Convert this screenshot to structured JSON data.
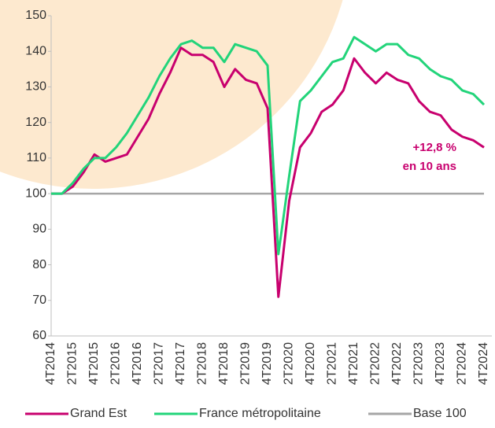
{
  "chart_data": {
    "type": "line",
    "categories": [
      "4T2014",
      null,
      "2T2015",
      null,
      "4T2015",
      null,
      "2T2016",
      null,
      "4T2016",
      null,
      "2T2017",
      null,
      "4T2017",
      null,
      "2T2018",
      null,
      "4T2018",
      null,
      "2T2019",
      null,
      "4T2019",
      null,
      "2T2020",
      null,
      "4T2020",
      null,
      "2T2021",
      null,
      "4T2021",
      null,
      "2T2022",
      null,
      "4T2022",
      null,
      "2T2023",
      null,
      "4T2023",
      null,
      "2T2024",
      null,
      "4T2024"
    ],
    "series": [
      {
        "name": "Grand Est",
        "color": "#c8006e",
        "values": [
          100,
          100,
          102,
          106,
          111,
          109,
          110,
          111,
          116,
          121,
          128,
          134,
          141,
          139,
          139,
          137,
          130,
          135,
          132,
          131,
          124,
          71,
          98,
          113,
          117,
          123,
          125,
          129,
          138,
          134,
          131,
          134,
          132,
          131,
          126,
          123,
          122,
          118,
          116,
          115,
          113
        ]
      },
      {
        "name": "France métropolitaine",
        "color": "#22d47a",
        "values": [
          100,
          100,
          103,
          107,
          110,
          110,
          113,
          117,
          122,
          127,
          133,
          138,
          142,
          143,
          141,
          141,
          137,
          142,
          141,
          140,
          136,
          83,
          105,
          126,
          129,
          133,
          137,
          138,
          144,
          142,
          140,
          142,
          142,
          139,
          138,
          135,
          133,
          132,
          129,
          128,
          125
        ]
      },
      {
        "name": "Base 100",
        "color": "#a6a6a6",
        "values": [
          100,
          100,
          100,
          100,
          100,
          100,
          100,
          100,
          100,
          100,
          100,
          100,
          100,
          100,
          100,
          100,
          100,
          100,
          100,
          100,
          100,
          100,
          100,
          100,
          100,
          100,
          100,
          100,
          100,
          100,
          100,
          100,
          100,
          100,
          100,
          100,
          100,
          100,
          100,
          100,
          100
        ]
      }
    ],
    "annotations": [
      "+12,8 %",
      "en 10 ans"
    ],
    "ylim": [
      60,
      150
    ],
    "yticks": [
      60,
      70,
      80,
      90,
      100,
      110,
      120,
      130,
      140,
      150
    ],
    "grid": false
  }
}
